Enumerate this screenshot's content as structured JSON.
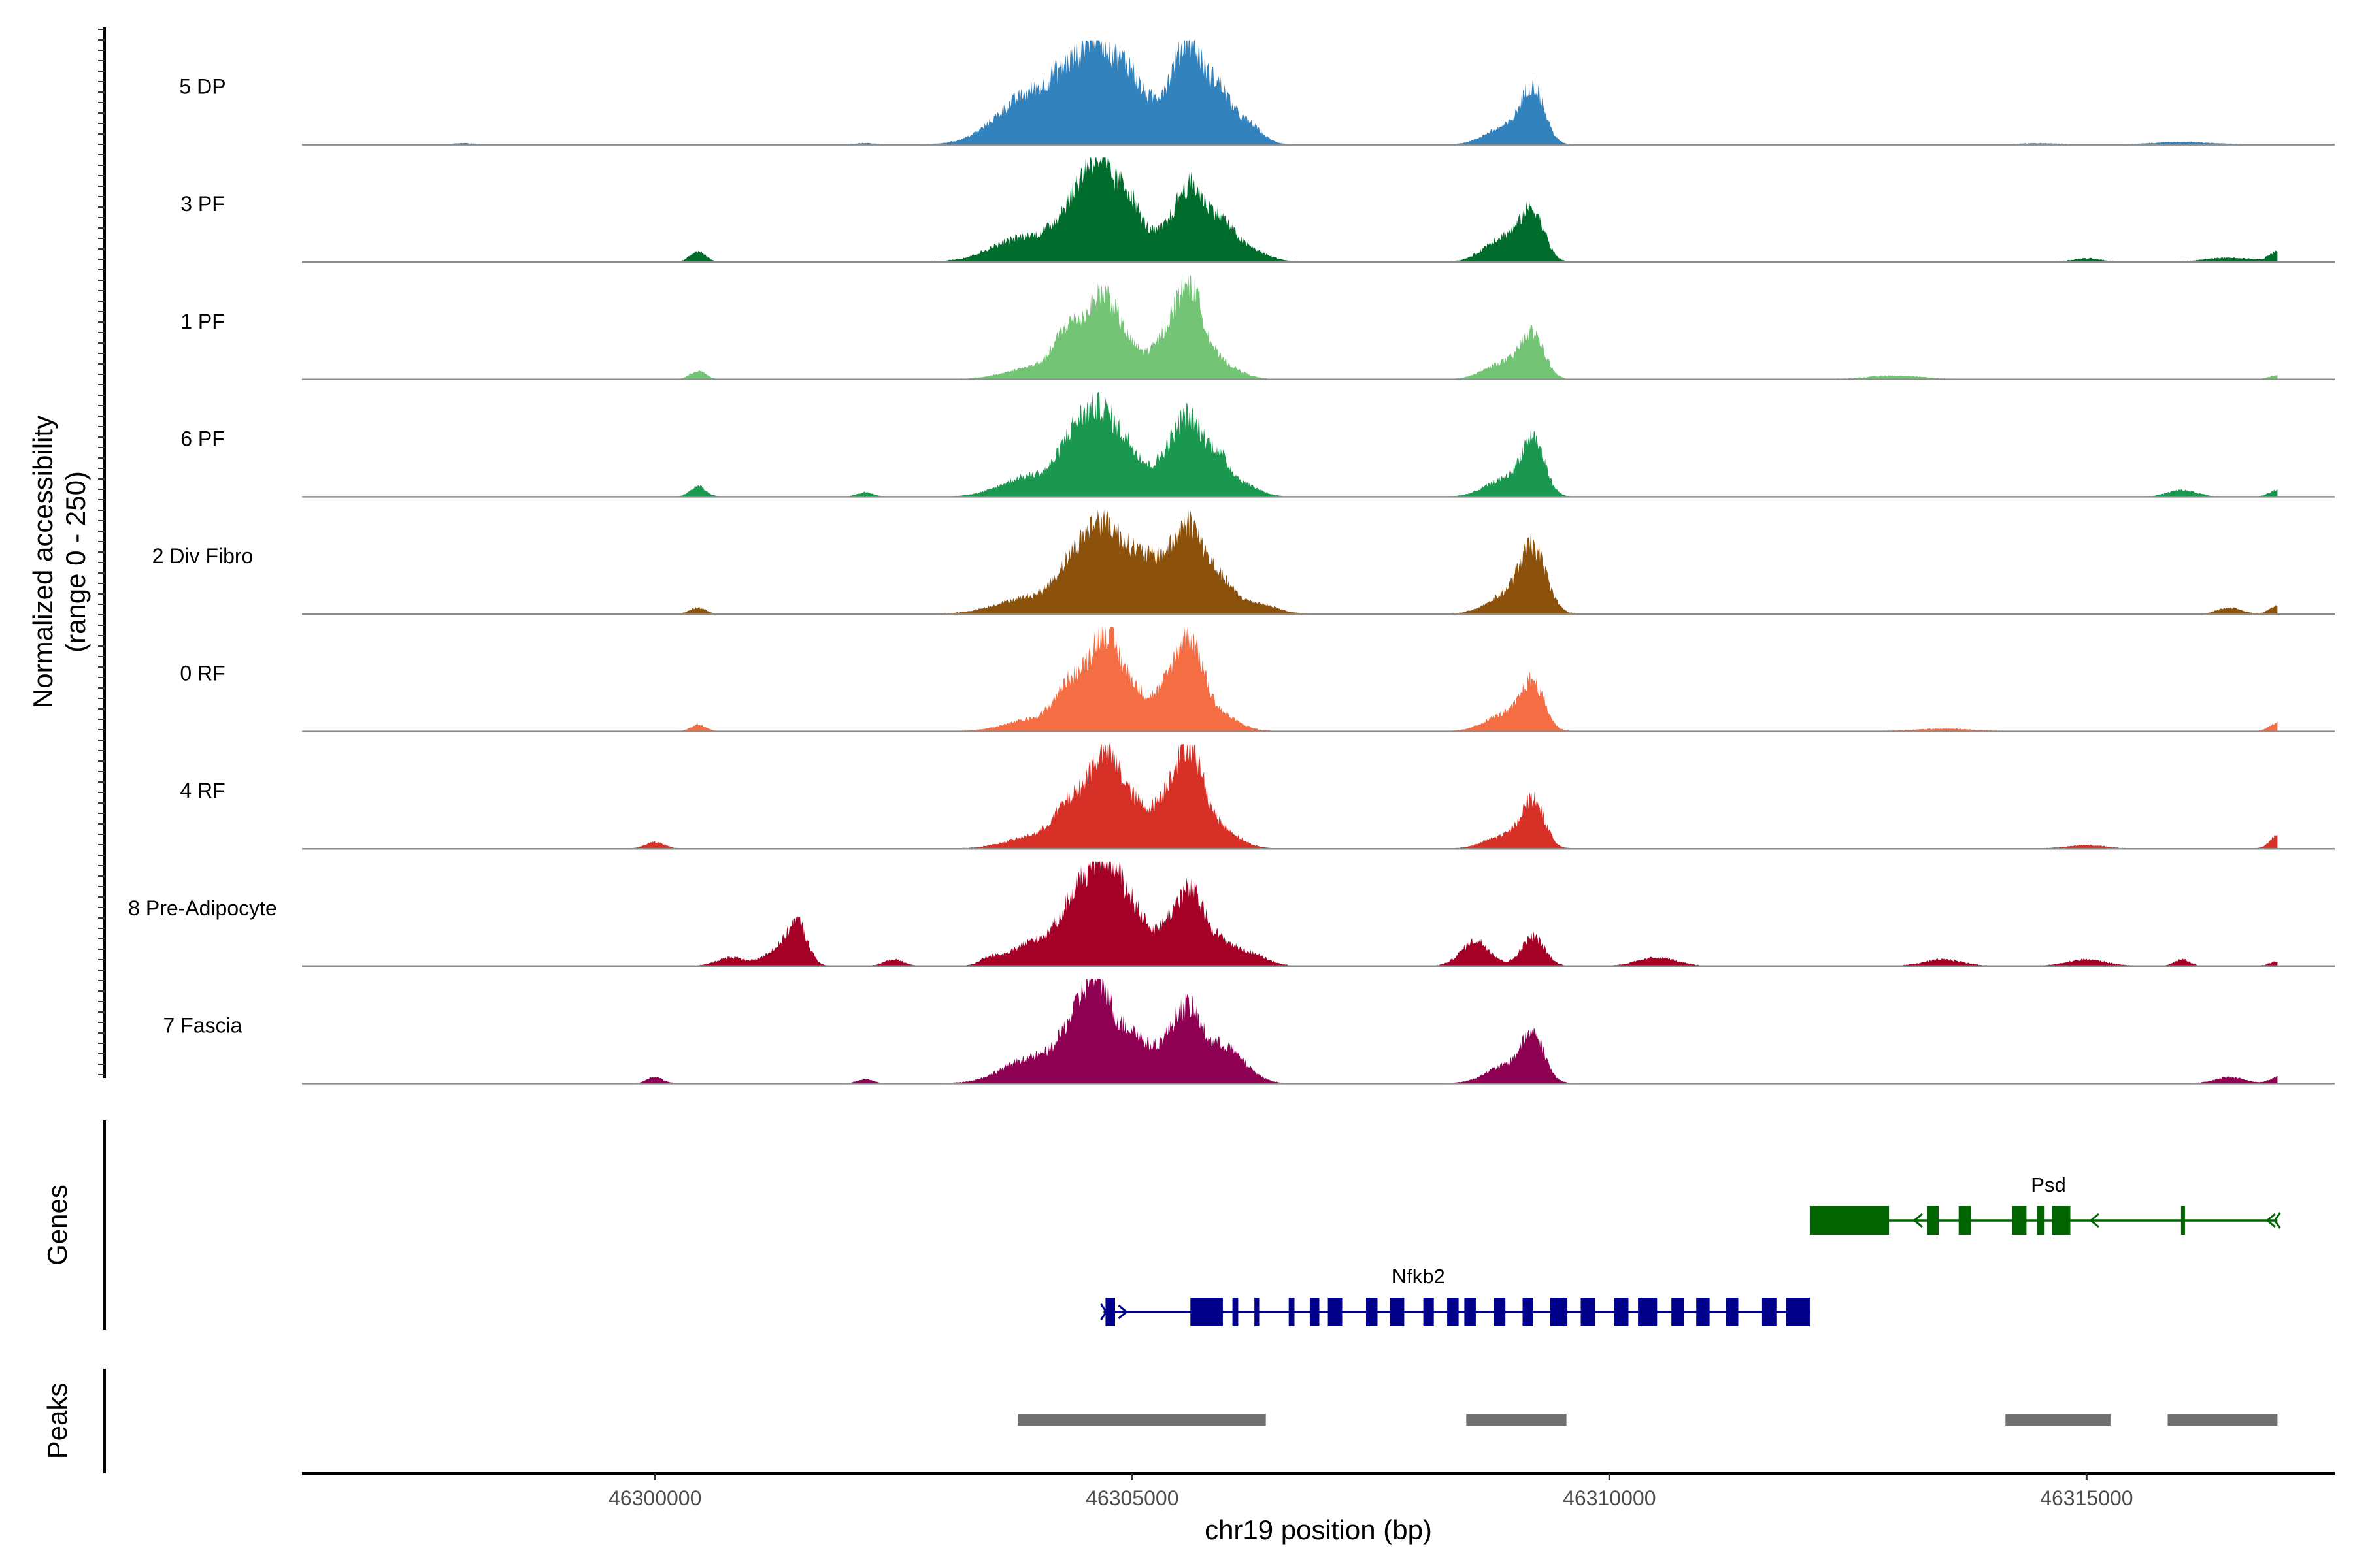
{
  "chart_data": {
    "type": "area",
    "title": "",
    "ylabel": "Normalized accessibility (range 0 - 250)",
    "ylabel_lines": [
      "Normalized accessibility",
      "(range 0 - 250)"
    ],
    "ylim": [
      0,
      250
    ],
    "xlabel": "chr19 position (bp)",
    "xlim": [
      46296300,
      46317600
    ],
    "x_ticks": [
      46300000,
      46305000,
      46310000,
      46315000
    ],
    "x_tick_labels": [
      "46300000",
      "46305000",
      "46310000",
      "46315000"
    ],
    "data_range": [
      46297000,
      46317000
    ],
    "series": [
      {
        "name": "5 DP",
        "color": "#3182bd",
        "peaks": [
          [
            46303950,
            120,
            350
          ],
          [
            46304350,
            110,
            180
          ],
          [
            46304650,
            210,
            150
          ],
          [
            46304950,
            150,
            130
          ],
          [
            46305300,
            100,
            180
          ],
          [
            46305600,
            220,
            140
          ],
          [
            46305900,
            120,
            130
          ],
          [
            46306200,
            50,
            150
          ],
          [
            46308900,
            40,
            200
          ],
          [
            46309200,
            130,
            120
          ],
          [
            46302200,
            3,
            120
          ],
          [
            46298000,
            3,
            100
          ],
          [
            46316000,
            6,
            300
          ],
          [
            46314500,
            3,
            200
          ]
        ]
      },
      {
        "name": "3 PF",
        "color": "#006d2c",
        "peaks": [
          [
            46303900,
            60,
            350
          ],
          [
            46304400,
            110,
            180
          ],
          [
            46304650,
            190,
            150
          ],
          [
            46304950,
            140,
            130
          ],
          [
            46305300,
            60,
            180
          ],
          [
            46305600,
            160,
            140
          ],
          [
            46305900,
            90,
            150
          ],
          [
            46306200,
            30,
            200
          ],
          [
            46308900,
            60,
            200
          ],
          [
            46309200,
            110,
            120
          ],
          [
            46300450,
            25,
            80
          ],
          [
            46316500,
            10,
            250
          ],
          [
            46317000,
            25,
            80
          ],
          [
            46315000,
            8,
            150
          ]
        ]
      },
      {
        "name": "1 PF",
        "color": "#74c476",
        "peaks": [
          [
            46304000,
            30,
            300
          ],
          [
            46304350,
            110,
            150
          ],
          [
            46304700,
            190,
            150
          ],
          [
            46305000,
            60,
            150
          ],
          [
            46305350,
            80,
            140
          ],
          [
            46305600,
            200,
            140
          ],
          [
            46305900,
            40,
            200
          ],
          [
            46308900,
            40,
            200
          ],
          [
            46309200,
            100,
            120
          ],
          [
            46300450,
            20,
            80
          ],
          [
            46313000,
            8,
            300
          ],
          [
            46317000,
            10,
            80
          ]
        ]
      },
      {
        "name": "6 PF",
        "color": "#1a9850",
        "peaks": [
          [
            46303950,
            50,
            300
          ],
          [
            46304400,
            130,
            160
          ],
          [
            46304700,
            180,
            160
          ],
          [
            46305000,
            90,
            130
          ],
          [
            46305350,
            80,
            140
          ],
          [
            46305600,
            170,
            140
          ],
          [
            46305900,
            90,
            130
          ],
          [
            46306200,
            25,
            150
          ],
          [
            46308900,
            40,
            200
          ],
          [
            46309200,
            130,
            120
          ],
          [
            46300450,
            25,
            80
          ],
          [
            46302200,
            10,
            80
          ],
          [
            46316000,
            15,
            150
          ],
          [
            46317000,
            15,
            80
          ]
        ]
      },
      {
        "name": "2 Div Fibro",
        "color": "#8c510a",
        "peaks": [
          [
            46303950,
            40,
            350
          ],
          [
            46304400,
            110,
            180
          ],
          [
            46304700,
            180,
            160
          ],
          [
            46305000,
            110,
            150
          ],
          [
            46305300,
            110,
            160
          ],
          [
            46305600,
            190,
            140
          ],
          [
            46305900,
            80,
            150
          ],
          [
            46306300,
            25,
            200
          ],
          [
            46308900,
            40,
            200
          ],
          [
            46309200,
            150,
            140
          ],
          [
            46300450,
            15,
            80
          ],
          [
            46316500,
            15,
            120
          ],
          [
            46317000,
            20,
            80
          ]
        ]
      },
      {
        "name": "0 RF",
        "color": "#f46d43",
        "peaks": [
          [
            46304000,
            30,
            300
          ],
          [
            46304350,
            100,
            150
          ],
          [
            46304700,
            220,
            150
          ],
          [
            46305000,
            90,
            150
          ],
          [
            46305350,
            80,
            140
          ],
          [
            46305600,
            200,
            140
          ],
          [
            46305900,
            40,
            200
          ],
          [
            46308900,
            40,
            200
          ],
          [
            46309200,
            110,
            120
          ],
          [
            46300450,
            15,
            80
          ],
          [
            46317000,
            20,
            80
          ],
          [
            46313500,
            6,
            300
          ]
        ]
      },
      {
        "name": "4 RF",
        "color": "#d73027",
        "peaks": [
          [
            46304000,
            30,
            300
          ],
          [
            46304350,
            90,
            160
          ],
          [
            46304700,
            210,
            160
          ],
          [
            46305000,
            90,
            150
          ],
          [
            46305350,
            100,
            150
          ],
          [
            46305600,
            210,
            140
          ],
          [
            46305900,
            50,
            200
          ],
          [
            46308900,
            30,
            200
          ],
          [
            46309200,
            110,
            120
          ],
          [
            46300000,
            15,
            100
          ],
          [
            46317000,
            30,
            80
          ],
          [
            46315000,
            8,
            200
          ]
        ]
      },
      {
        "name": "8 Pre-Adipocyte",
        "color": "#a50026",
        "peaks": [
          [
            46304000,
            60,
            250
          ],
          [
            46304400,
            130,
            160
          ],
          [
            46304700,
            230,
            160
          ],
          [
            46305000,
            120,
            150
          ],
          [
            46305350,
            70,
            140
          ],
          [
            46305600,
            150,
            140
          ],
          [
            46305900,
            60,
            200
          ],
          [
            46306300,
            20,
            150
          ],
          [
            46308600,
            60,
            150
          ],
          [
            46309200,
            70,
            120
          ],
          [
            46301500,
            90,
            100
          ],
          [
            46301300,
            40,
            150
          ],
          [
            46300800,
            20,
            150
          ],
          [
            46302500,
            15,
            100
          ],
          [
            46303500,
            15,
            100
          ],
          [
            46310500,
            20,
            200
          ],
          [
            46313500,
            15,
            200
          ],
          [
            46315000,
            15,
            200
          ],
          [
            46316000,
            15,
            80
          ],
          [
            46317000,
            10,
            80
          ]
        ]
      },
      {
        "name": "7 Fascia",
        "color": "#8e0152",
        "peaks": [
          [
            46303950,
            60,
            300
          ],
          [
            46304400,
            110,
            170
          ],
          [
            46304650,
            210,
            150
          ],
          [
            46305000,
            110,
            140
          ],
          [
            46305350,
            80,
            150
          ],
          [
            46305600,
            160,
            140
          ],
          [
            46305950,
            80,
            150
          ],
          [
            46306200,
            25,
            150
          ],
          [
            46308900,
            40,
            200
          ],
          [
            46309200,
            110,
            120
          ],
          [
            46300000,
            15,
            80
          ],
          [
            46302200,
            10,
            80
          ],
          [
            46316500,
            15,
            150
          ],
          [
            46317000,
            15,
            80
          ]
        ]
      }
    ],
    "genes": [
      {
        "name": "Psd",
        "strand": "-",
        "color": "#006400",
        "start": 46312100,
        "end": 46317000,
        "exons": [
          [
            46312100,
            46312930,
            "utr"
          ],
          [
            46313330,
            46313450,
            "cds"
          ],
          [
            46313660,
            46313790,
            "cds"
          ],
          [
            46314220,
            46314370,
            "cds"
          ],
          [
            46314480,
            46314560,
            "cds"
          ],
          [
            46314640,
            46314830,
            "cds"
          ],
          [
            46315990,
            46316010,
            "cds"
          ]
        ]
      },
      {
        "name": "Nfkb2",
        "strand": "+",
        "color": "#00008b",
        "start": 46304700,
        "end": 46312100,
        "exons": [
          [
            46304720,
            46304820,
            "cds"
          ],
          [
            46305610,
            46305950,
            "utr"
          ],
          [
            46306050,
            46306110,
            "cds"
          ],
          [
            46306280,
            46306330,
            "cds"
          ],
          [
            46306640,
            46306700,
            "cds"
          ],
          [
            46306860,
            46306960,
            "cds"
          ],
          [
            46307050,
            46307200,
            "cds"
          ],
          [
            46307450,
            46307570,
            "cds"
          ],
          [
            46307700,
            46307850,
            "cds"
          ],
          [
            46308050,
            46308160,
            "cds"
          ],
          [
            46308300,
            46308420,
            "cds"
          ],
          [
            46308480,
            46308600,
            "cds"
          ],
          [
            46308790,
            46308910,
            "cds"
          ],
          [
            46309090,
            46309200,
            "cds"
          ],
          [
            46309380,
            46309560,
            "cds"
          ],
          [
            46309700,
            46309850,
            "cds"
          ],
          [
            46310050,
            46310200,
            "cds"
          ],
          [
            46310300,
            46310500,
            "cds"
          ],
          [
            46310650,
            46310780,
            "cds"
          ],
          [
            46310910,
            46311050,
            "cds"
          ],
          [
            46311220,
            46311350,
            "cds"
          ],
          [
            46311600,
            46311750,
            "cds"
          ],
          [
            46311850,
            46312100,
            "utr"
          ]
        ]
      }
    ],
    "peak_regions": [
      [
        46303800,
        46306400
      ],
      [
        46308500,
        46309550
      ],
      [
        46314150,
        46315250
      ],
      [
        46315850,
        46317000
      ]
    ],
    "track_titles": {
      "genes": "Genes",
      "peaks": "Peaks"
    }
  }
}
